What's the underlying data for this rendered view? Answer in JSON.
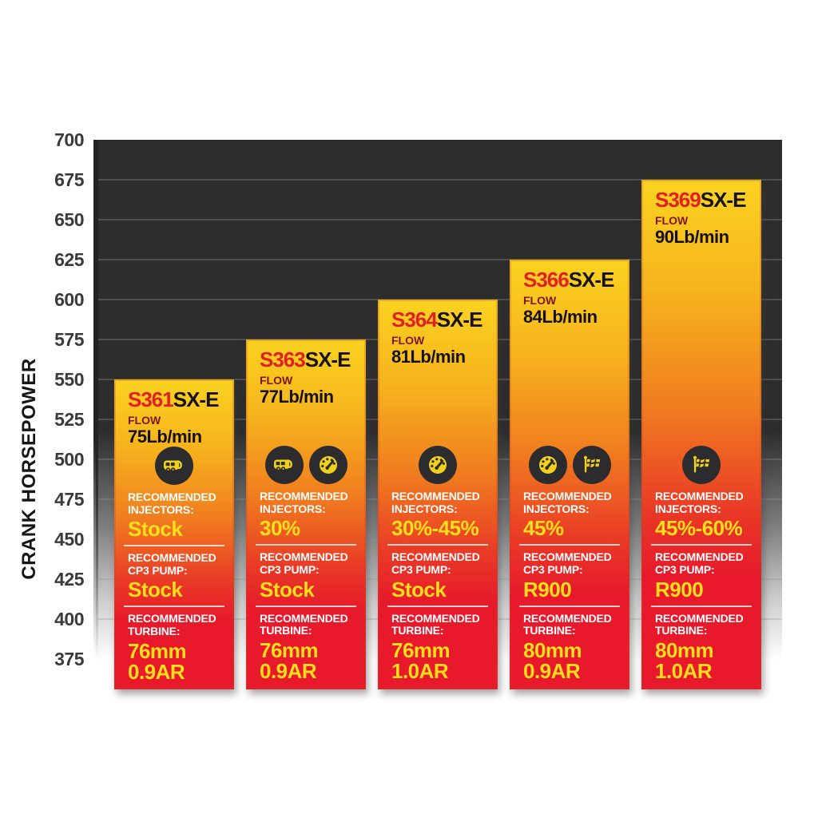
{
  "axis": {
    "title": "CRANK HORSEPOWER",
    "ticks": [
      "700",
      "675",
      "650",
      "625",
      "600",
      "575",
      "550",
      "525",
      "500",
      "475",
      "450",
      "425",
      "400",
      "375"
    ]
  },
  "labels": {
    "flow": "FLOW",
    "injectors_heading": "RECOMMENDED INJECTORS:",
    "cp3_heading": "RECOMMENDED CP3 PUMP:",
    "turbine_heading": "RECOMMENDED TURBINE:"
  },
  "colors": {
    "plot_background": "#2e2d2e",
    "bar_gradient_top": "#fbd320",
    "bar_gradient_mid": "#f07c1f",
    "bar_gradient_bottom": "#e7192b",
    "model_prefix_red": "#e11f27",
    "value_yellow": "#ffdf1b",
    "heading_white": "#ffffff",
    "icon_circle": "#2c2b2d",
    "icon_glyph": "#f2d11c"
  },
  "chart_data": {
    "type": "bar",
    "title": "",
    "xlabel": "",
    "ylabel": "CRANK HORSEPOWER",
    "ylim": [
      375,
      700
    ],
    "ytick_step": 25,
    "grid": true,
    "legend": "none",
    "categories": [
      "S361SX-E",
      "S363SX-E",
      "S364SX-E",
      "S366SX-E",
      "S369SX-E"
    ],
    "values": [
      550,
      575,
      600,
      625,
      675
    ],
    "bars": [
      {
        "model_prefix": "S361",
        "model_suffix": "SX-E",
        "flow": "75Lb/min",
        "crank_hp": 550,
        "icons": [
          "rv"
        ],
        "injectors": "Stock",
        "cp3_pump": "Stock",
        "turbine_size": "76mm",
        "turbine_ar": "0.9AR"
      },
      {
        "model_prefix": "S363",
        "model_suffix": "SX-E",
        "flow": "77Lb/min",
        "crank_hp": 575,
        "icons": [
          "rv",
          "gauge"
        ],
        "injectors": "30%",
        "cp3_pump": "Stock",
        "turbine_size": "76mm",
        "turbine_ar": "0.9AR"
      },
      {
        "model_prefix": "S364",
        "model_suffix": "SX-E",
        "flow": "81Lb/min",
        "crank_hp": 600,
        "icons": [
          "gauge"
        ],
        "injectors": "30%-45%",
        "cp3_pump": "Stock",
        "turbine_size": "76mm",
        "turbine_ar": "1.0AR"
      },
      {
        "model_prefix": "S366",
        "model_suffix": "SX-E",
        "flow": "84Lb/min",
        "crank_hp": 625,
        "icons": [
          "gauge",
          "flag"
        ],
        "injectors": "45%",
        "cp3_pump": "R900",
        "turbine_size": "80mm",
        "turbine_ar": "0.9AR"
      },
      {
        "model_prefix": "S369",
        "model_suffix": "SX-E",
        "flow": "90Lb/min",
        "crank_hp": 675,
        "icons": [
          "flag"
        ],
        "injectors": "45%-60%",
        "cp3_pump": "R900",
        "turbine_size": "80mm",
        "turbine_ar": "1.0AR"
      }
    ]
  }
}
